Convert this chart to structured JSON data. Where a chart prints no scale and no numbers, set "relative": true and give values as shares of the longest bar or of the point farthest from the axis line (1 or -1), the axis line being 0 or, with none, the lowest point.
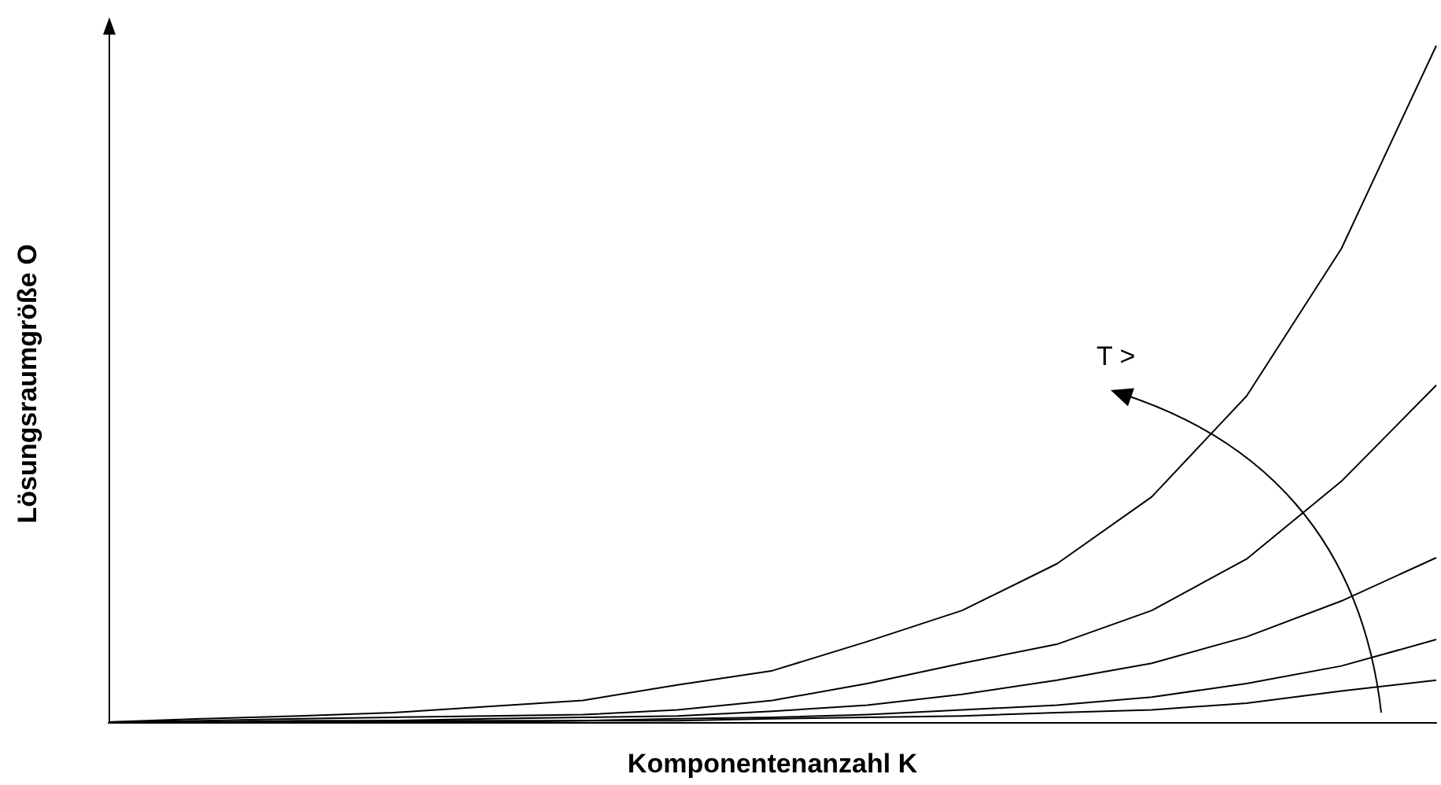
{
  "chart_data": {
    "type": "line",
    "relative": true,
    "xlabel": "Komponentenanzahl K",
    "ylabel": "Lösungsraumgröße O",
    "annotations": [
      "T >"
    ],
    "categories": [
      null,
      null,
      null,
      null,
      null,
      null,
      null,
      null,
      null,
      null,
      null,
      null,
      null,
      null,
      null
    ],
    "marker": "none",
    "grid": false,
    "series": [
      {
        "color": "#000000",
        "values": [
          0,
          0.005,
          0.009,
          0.014,
          0.023,
          0.032,
          0.055,
          0.076,
          0.119,
          0.165,
          0.234,
          0.333,
          0.482,
          0.7,
          1
        ]
      },
      {
        "color": "#000000",
        "values": [
          0,
          0.002,
          0.005,
          0.007,
          0.009,
          0.011,
          0.018,
          0.032,
          0.057,
          0.087,
          0.115,
          0.165,
          0.241,
          0.356,
          0.498
        ]
      },
      {
        "color": "#000000",
        "values": [
          0,
          0,
          0.002,
          0.002,
          0.005,
          0.007,
          0.009,
          0.016,
          0.025,
          0.041,
          0.062,
          0.087,
          0.126,
          0.179,
          0.243
        ]
      },
      {
        "color": "#000000",
        "values": [
          0,
          0,
          0,
          0.002,
          0.002,
          0.002,
          0.005,
          0.007,
          0.011,
          0.018,
          0.025,
          0.037,
          0.057,
          0.083,
          0.122
        ]
      },
      {
        "color": "#000000",
        "values": [
          0,
          0,
          0,
          0,
          0,
          0.002,
          0.002,
          0.005,
          0.007,
          0.009,
          0.014,
          0.018,
          0.028,
          0.046,
          0.062
        ]
      }
    ]
  }
}
